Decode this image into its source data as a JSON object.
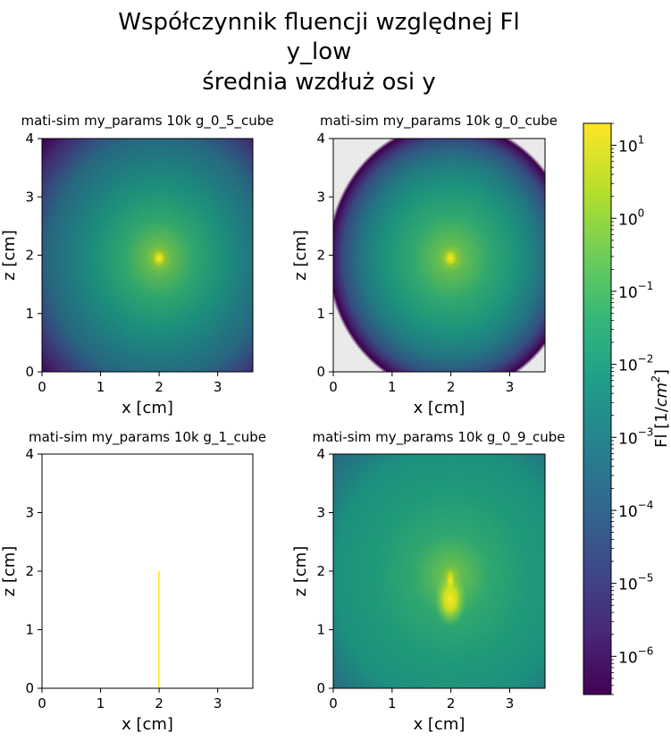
{
  "figure": {
    "title_lines": [
      "Współczynnik fluencji względnej Fl",
      "y_low",
      "średnia wzdłuż osi y"
    ]
  },
  "chart_data": [
    {
      "type": "heatmap",
      "title": "mati-sim my_params 10k g_0_5_cube",
      "xlabel": "x [cm]",
      "ylabel": "z [cm]",
      "xlim": [
        0,
        3.6
      ],
      "ylim": [
        0,
        4
      ],
      "xticks": [
        "0",
        "1",
        "2",
        "3"
      ],
      "yticks": [
        "0",
        "1",
        "2",
        "3",
        "4"
      ],
      "source_center": [
        2.0,
        1.95
      ],
      "peak_value": 20,
      "falloff": "radially symmetric, fills whole area",
      "scale": "log"
    },
    {
      "type": "heatmap",
      "title": "mati-sim my_params 10k g_0_cube",
      "xlabel": "x [cm]",
      "ylabel": "z [cm]",
      "xlim": [
        0,
        3.6
      ],
      "ylim": [
        0,
        4
      ],
      "xticks": [
        "0",
        "1",
        "2",
        "3"
      ],
      "yticks": [
        "0",
        "1",
        "2",
        "3",
        "4"
      ],
      "source_center": [
        2.0,
        1.95
      ],
      "peak_value": 20,
      "falloff": "radially symmetric, empty (white) at corners",
      "scale": "log"
    },
    {
      "type": "heatmap",
      "title": "mati-sim my_params 10k g_1_cube",
      "xlabel": "x [cm]",
      "ylabel": "z [cm]",
      "xlim": [
        0,
        3.6
      ],
      "ylim": [
        0,
        4
      ],
      "xticks": [
        "0",
        "1",
        "2",
        "3"
      ],
      "yticks": [
        "0",
        "1",
        "2",
        "3",
        "4"
      ],
      "beam_line": {
        "x": 2.0,
        "z_from": 0,
        "z_to": 2.0,
        "value": 20
      },
      "scale": "log"
    },
    {
      "type": "heatmap",
      "title": "mati-sim my_params 10k g_0_9_cube",
      "xlabel": "x [cm]",
      "ylabel": "z [cm]",
      "xlim": [
        0,
        3.6
      ],
      "ylim": [
        0,
        4
      ],
      "xticks": [
        "0",
        "1",
        "2",
        "3"
      ],
      "yticks": [
        "0",
        "1",
        "2",
        "3",
        "4"
      ],
      "source_center": [
        2.0,
        1.9
      ],
      "peak_value": 20,
      "falloff": "forward-peaked plume below source, fills whole area",
      "scale": "log"
    }
  ],
  "colorbar": {
    "label_base": "Fl [1/",
    "label_unit": "cm",
    "label_exp": "2",
    "label_end": "]",
    "scale": "log",
    "range": [
      3e-07,
      20
    ],
    "colormap": "viridis",
    "ticks": [
      {
        "value": 10,
        "base": "10",
        "exp": "1"
      },
      {
        "value": 1,
        "base": "10",
        "exp": "0"
      },
      {
        "value": 0.1,
        "base": "10",
        "exp": "−1"
      },
      {
        "value": 0.01,
        "base": "10",
        "exp": "−2"
      },
      {
        "value": 0.001,
        "base": "10",
        "exp": "−3"
      },
      {
        "value": 0.0001,
        "base": "10",
        "exp": "−4"
      },
      {
        "value": 1e-05,
        "base": "10",
        "exp": "−5"
      },
      {
        "value": 1e-06,
        "base": "10",
        "exp": "−6"
      }
    ]
  },
  "colors": {
    "viridis_stops": [
      "#440154",
      "#482878",
      "#3e4989",
      "#31688e",
      "#26828e",
      "#1f9e89",
      "#35b779",
      "#6ece58",
      "#b5de2b",
      "#fde725"
    ]
  }
}
